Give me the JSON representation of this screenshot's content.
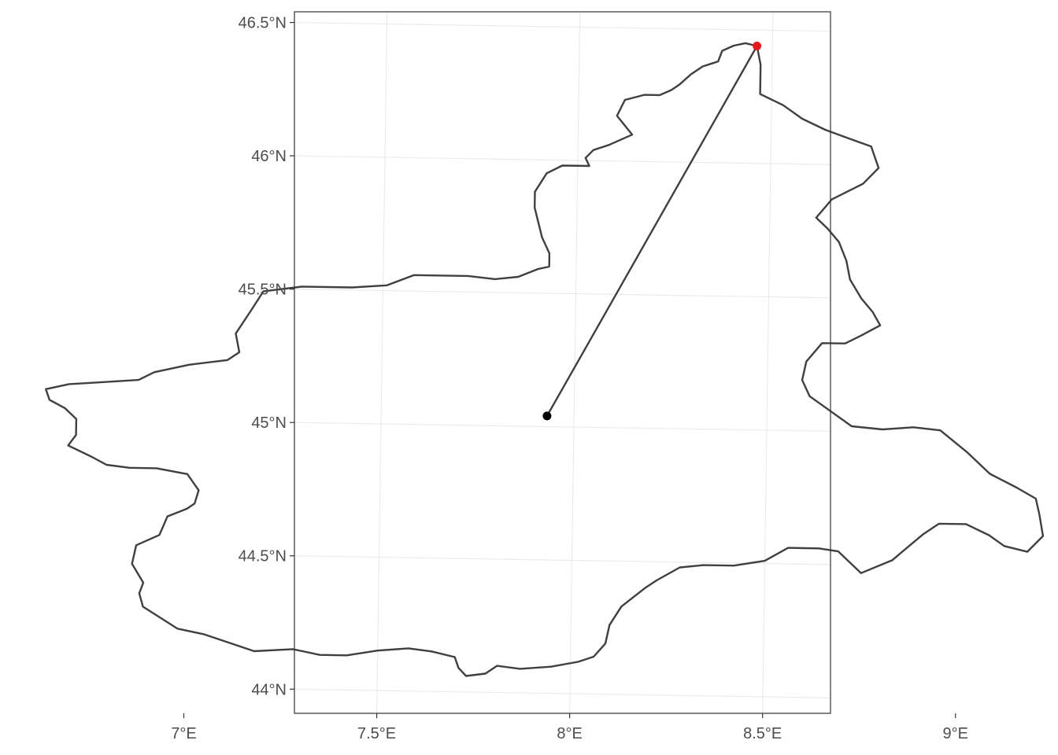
{
  "map": {
    "type": "map",
    "title": "",
    "x_axis": {
      "ticks": [
        {
          "value": 7.0,
          "label": "7°E"
        },
        {
          "value": 7.5,
          "label": "7.5°E"
        },
        {
          "value": 8.0,
          "label": "8°E"
        },
        {
          "value": 8.5,
          "label": "8.5°E"
        },
        {
          "value": 9.0,
          "label": "9°E"
        }
      ]
    },
    "y_axis": {
      "ticks": [
        {
          "value": 44.0,
          "label": "44°N"
        },
        {
          "value": 44.5,
          "label": "44.5°N"
        },
        {
          "value": 45.0,
          "label": "45°N"
        },
        {
          "value": 45.5,
          "label": "45.5°N"
        },
        {
          "value": 46.0,
          "label": "46°N"
        },
        {
          "value": 46.5,
          "label": "46.5°N"
        }
      ]
    },
    "grid": true,
    "colors": {
      "outline": "#404040",
      "centroid": "#000000",
      "farthest_point": "#e41a1c",
      "grid": "#ebebeb",
      "panel_border": "#333333"
    },
    "centroid": {
      "lon": 7.93,
      "lat": 45.04
    },
    "farthest_point": {
      "lon": 8.46,
      "lat": 46.44
    },
    "region_outline": [
      [
        8.46,
        46.44
      ],
      [
        8.43,
        46.45
      ],
      [
        8.4,
        46.44
      ],
      [
        8.37,
        46.42
      ],
      [
        8.36,
        46.38
      ],
      [
        8.34,
        46.37
      ],
      [
        8.32,
        46.36
      ],
      [
        8.29,
        46.33
      ],
      [
        8.26,
        46.29
      ],
      [
        8.24,
        46.27
      ],
      [
        8.21,
        46.25
      ],
      [
        8.17,
        46.25
      ],
      [
        8.12,
        46.23
      ],
      [
        8.1,
        46.17
      ],
      [
        8.14,
        46.1
      ],
      [
        8.08,
        46.06
      ],
      [
        8.04,
        46.04
      ],
      [
        8.02,
        46.01
      ],
      [
        8.03,
        45.98
      ],
      [
        7.96,
        45.98
      ],
      [
        7.92,
        45.95
      ],
      [
        7.89,
        45.88
      ],
      [
        7.89,
        45.82
      ],
      [
        7.91,
        45.71
      ],
      [
        7.93,
        45.65
      ],
      [
        7.93,
        45.6
      ],
      [
        7.9,
        45.59
      ],
      [
        7.85,
        45.56
      ],
      [
        7.79,
        45.55
      ],
      [
        7.72,
        45.56
      ],
      [
        7.64,
        45.56
      ],
      [
        7.58,
        45.56
      ],
      [
        7.51,
        45.52
      ],
      [
        7.42,
        45.51
      ],
      [
        7.29,
        45.51
      ],
      [
        7.19,
        45.49
      ],
      [
        7.16,
        45.42
      ],
      [
        7.12,
        45.33
      ],
      [
        7.13,
        45.26
      ],
      [
        7.1,
        45.23
      ],
      [
        7.0,
        45.21
      ],
      [
        6.91,
        45.18
      ],
      [
        6.87,
        45.15
      ],
      [
        6.78,
        45.14
      ],
      [
        6.69,
        45.13
      ],
      [
        6.63,
        45.11
      ],
      [
        6.64,
        45.07
      ],
      [
        6.68,
        45.04
      ],
      [
        6.71,
        45.0
      ],
      [
        6.71,
        44.94
      ],
      [
        6.69,
        44.9
      ],
      [
        6.75,
        44.86
      ],
      [
        6.79,
        44.83
      ],
      [
        6.85,
        44.82
      ],
      [
        6.92,
        44.82
      ],
      [
        7.0,
        44.8
      ],
      [
        7.03,
        44.74
      ],
      [
        7.02,
        44.69
      ],
      [
        7.0,
        44.67
      ],
      [
        6.95,
        44.64
      ],
      [
        6.93,
        44.57
      ],
      [
        6.87,
        44.53
      ],
      [
        6.86,
        44.46
      ],
      [
        6.89,
        44.39
      ],
      [
        6.88,
        44.35
      ],
      [
        6.89,
        44.3
      ],
      [
        6.98,
        44.22
      ],
      [
        7.05,
        44.2
      ],
      [
        7.18,
        44.14
      ],
      [
        7.28,
        44.15
      ],
      [
        7.35,
        44.13
      ],
      [
        7.42,
        44.13
      ],
      [
        7.5,
        44.15
      ],
      [
        7.58,
        44.16
      ],
      [
        7.64,
        44.15
      ],
      [
        7.7,
        44.13
      ],
      [
        7.71,
        44.09
      ],
      [
        7.73,
        44.06
      ],
      [
        7.78,
        44.07
      ],
      [
        7.81,
        44.1
      ],
      [
        7.87,
        44.09
      ],
      [
        7.95,
        44.1
      ],
      [
        8.02,
        44.12
      ],
      [
        8.06,
        44.14
      ],
      [
        8.09,
        44.19
      ],
      [
        8.1,
        44.26
      ],
      [
        8.13,
        44.33
      ],
      [
        8.19,
        44.4
      ],
      [
        8.22,
        44.43
      ],
      [
        8.28,
        44.48
      ],
      [
        8.34,
        44.49
      ],
      [
        8.42,
        44.49
      ],
      [
        8.5,
        44.51
      ],
      [
        8.56,
        44.56
      ],
      [
        8.64,
        44.56
      ],
      [
        8.69,
        44.55
      ],
      [
        8.75,
        44.47
      ],
      [
        8.83,
        44.52
      ],
      [
        8.87,
        44.57
      ],
      [
        8.91,
        44.62
      ],
      [
        8.95,
        44.66
      ],
      [
        9.02,
        44.66
      ],
      [
        9.08,
        44.62
      ],
      [
        9.12,
        44.58
      ],
      [
        9.18,
        44.56
      ],
      [
        9.22,
        44.62
      ],
      [
        9.21,
        44.7
      ],
      [
        9.2,
        44.76
      ],
      [
        9.15,
        44.8
      ],
      [
        9.08,
        44.85
      ],
      [
        9.02,
        44.93
      ],
      [
        8.95,
        45.01
      ],
      [
        8.88,
        45.02
      ],
      [
        8.8,
        45.01
      ],
      [
        8.72,
        45.02
      ],
      [
        8.66,
        45.08
      ],
      [
        8.61,
        45.13
      ],
      [
        8.59,
        45.19
      ],
      [
        8.6,
        45.26
      ],
      [
        8.64,
        45.33
      ],
      [
        8.7,
        45.33
      ],
      [
        8.74,
        45.36
      ],
      [
        8.79,
        45.4
      ],
      [
        8.77,
        45.45
      ],
      [
        8.74,
        45.5
      ],
      [
        8.71,
        45.57
      ],
      [
        8.7,
        45.64
      ],
      [
        8.68,
        45.71
      ],
      [
        8.65,
        45.76
      ],
      [
        8.62,
        45.8
      ],
      [
        8.66,
        45.87
      ],
      [
        8.74,
        45.93
      ],
      [
        8.78,
        45.99
      ],
      [
        8.76,
        46.07
      ],
      [
        8.7,
        46.1
      ],
      [
        8.64,
        46.13
      ],
      [
        8.58,
        46.17
      ],
      [
        8.53,
        46.22
      ],
      [
        8.47,
        46.26
      ],
      [
        8.47,
        46.31
      ],
      [
        8.47,
        46.37
      ],
      [
        8.46,
        46.44
      ]
    ]
  }
}
